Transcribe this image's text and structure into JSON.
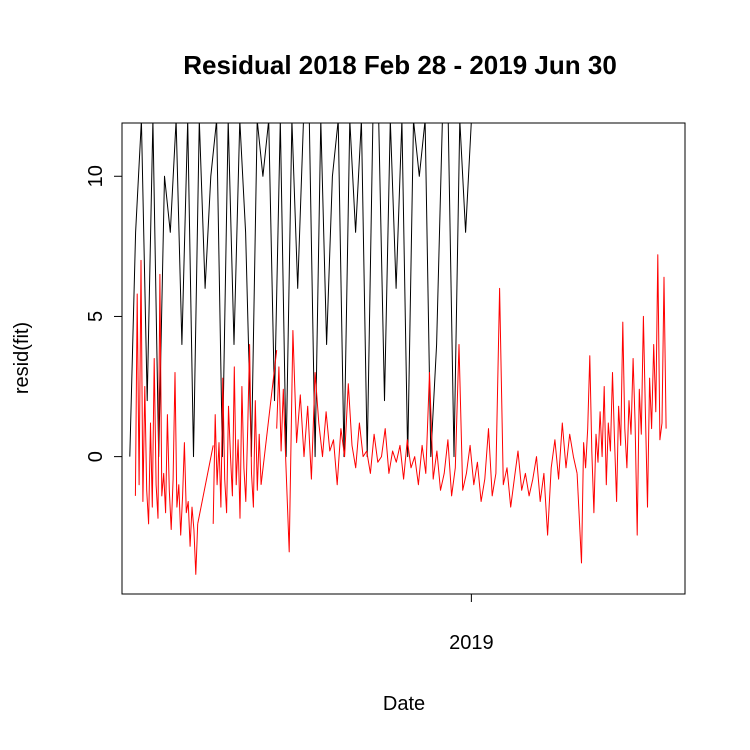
{
  "chart_data": {
    "type": "line",
    "title": "Residual  2018 Feb 28 - 2019 Jun 30",
    "xlabel": "Date",
    "ylabel": "resid(fit)",
    "x_range": [
      "2018-02-28",
      "2019-06-30"
    ],
    "ylim": [
      -4.9,
      11.9
    ],
    "x_ticks": [
      {
        "value": "2019-01-01",
        "label": "2019"
      }
    ],
    "y_ticks": [
      {
        "value": 0,
        "label": "0"
      },
      {
        "value": 5,
        "label": "5"
      },
      {
        "value": 10,
        "label": "10"
      }
    ],
    "grid": false,
    "legend": "none",
    "colors": {
      "series_black": "#000000",
      "series_red": "#ff0000"
    },
    "series": [
      {
        "color": "#000000",
        "style": "spikes",
        "segments": [
          {
            "x_start": "2018-02-28",
            "x_end": "2019-01-01",
            "values": [
              0,
              8,
              12,
              2,
              12,
              0,
              10,
              8,
              12,
              4,
              12,
              0,
              12,
              6,
              10,
              12,
              0,
              12,
              4,
              12,
              8,
              0,
              12,
              10,
              12,
              2,
              12,
              0,
              12,
              6,
              12,
              12,
              0,
              12,
              4,
              10,
              12,
              0,
              12,
              8,
              12,
              0,
              12,
              12,
              2,
              12,
              6,
              12,
              0,
              12,
              10,
              12,
              0,
              4,
              12,
              12,
              0,
              12,
              8,
              12
            ]
          }
        ]
      },
      {
        "color": "#ff0000",
        "style": "line",
        "segments": [
          {
            "x_start": "2018-03-05",
            "x_end": "2018-04-30",
            "values": [
              -1.4,
              5.8,
              -1.0,
              7.0,
              -1.6,
              2.5,
              -1.2,
              -2.4,
              1.2,
              -1.8,
              3.5,
              -1.0,
              -2.2,
              6.5,
              -1.4,
              -0.6,
              -2.0,
              1.5,
              -1.2,
              -2.6,
              -0.8,
              3.0,
              -1.8,
              -1.0,
              -2.8,
              -1.4,
              0.5,
              -2.0,
              -1.6,
              -3.2,
              -1.8,
              -2.6,
              -4.2,
              -2.4
            ]
          },
          {
            "x_start": "2018-04-30",
            "x_end": "2018-05-14",
            "values": [
              -2.4,
              0.4
            ]
          },
          {
            "x_start": "2018-05-14",
            "x_end": "2018-06-26",
            "values": [
              -2.4,
              1.5,
              -1.0,
              0.5,
              -1.8,
              2.8,
              -0.8,
              -2.0,
              1.8,
              0.0,
              -1.4,
              3.2,
              -1.0,
              0.6,
              -2.2,
              2.5,
              -0.4,
              -1.6,
              1.0,
              4.0,
              -0.6,
              -1.8,
              2.0,
              -1.2,
              0.8,
              -1.0
            ]
          },
          {
            "x_start": "2018-06-26",
            "x_end": "2018-07-10",
            "values": [
              -1.0,
              3.8
            ]
          },
          {
            "x_start": "2018-07-10",
            "x_end": "2018-07-18",
            "values": [
              1.0,
              3.2,
              0.2,
              2.4,
              0.0
            ]
          },
          {
            "x_start": "2018-07-18",
            "x_end": "2019-04-06",
            "values": [
              0.0,
              -3.4,
              4.5,
              0.5,
              2.2,
              0.0,
              1.8,
              -0.8,
              3.0,
              1.2,
              0.0,
              1.6,
              0.2,
              0.6,
              -1.0,
              1.0,
              0.0,
              2.6,
              0.4,
              -0.4,
              1.2,
              0.0,
              0.2,
              -0.6,
              0.8,
              -0.2,
              0.0,
              1.0,
              -0.6,
              0.2,
              -0.2,
              0.4,
              -0.8,
              0.6,
              -0.4,
              0.0,
              -1.0,
              0.4,
              -0.6,
              3.0,
              -0.8,
              0.2,
              -1.2,
              -0.6,
              0.6,
              -1.4,
              -0.4,
              4.0,
              -1.2,
              -0.6,
              0.4,
              -1.0,
              -0.2,
              -1.6,
              -0.8,
              1.0,
              -1.4,
              -0.6,
              6.0,
              -1.0,
              -0.4,
              -1.8,
              -0.8,
              0.2,
              -1.2,
              -0.6,
              -1.4,
              -0.8,
              0.0,
              -1.6,
              -0.6,
              -2.8,
              -0.4,
              0.6,
              -0.8,
              1.2,
              -0.4,
              0.8,
              0.0,
              -0.6
            ]
          },
          {
            "x_start": "2019-04-06",
            "x_end": "2019-04-10",
            "values": [
              -0.6,
              -3.8
            ]
          },
          {
            "x_start": "2019-04-10",
            "x_end": "2019-06-25",
            "values": [
              -3.8,
              0.5,
              -0.4,
              1.0,
              3.6,
              0.2,
              -2.0,
              0.8,
              -0.2,
              1.6,
              0.0,
              2.5,
              -1.0,
              1.2,
              0.2,
              3.0,
              0.6,
              -1.6,
              1.8,
              0.4,
              4.8,
              1.0,
              -0.4,
              2.0,
              0.8,
              3.5,
              1.2,
              -2.8,
              2.4,
              0.8,
              5.0,
              1.4,
              -1.8,
              2.8,
              1.0,
              4.0,
              1.6,
              7.2,
              0.6,
              1.2,
              6.4,
              1.0
            ]
          }
        ]
      }
    ]
  }
}
